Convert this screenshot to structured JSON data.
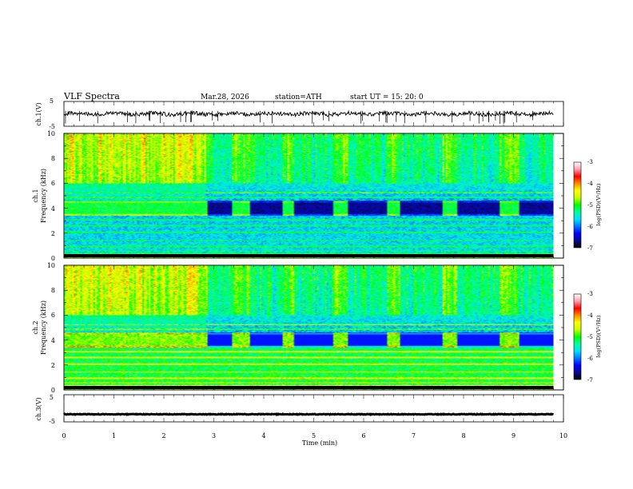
{
  "header": {
    "title": "VLF  Spectra",
    "date": "Mar.28, 2026",
    "station": "station=ATH",
    "start": "start  UT  =    15: 20: 0"
  },
  "colors": {
    "spec_stops": [
      "#000000",
      "#0a0a8c",
      "#0000ff",
      "#0077ff",
      "#00e0ff",
      "#00ff99",
      "#00ff00",
      "#c8ff00",
      "#ffff00",
      "#ff8c00",
      "#ff0000",
      "#ff9fb0",
      "#ffffff"
    ],
    "trace": "#000000"
  },
  "chart_data": [
    {
      "type": "line",
      "panel": "ch1-waveform",
      "ylabel": "ch.1(V)",
      "ylim": [
        -5,
        5
      ],
      "yticks": [
        "5",
        "-5"
      ],
      "xlim": [
        0,
        10
      ],
      "mean_value": 0,
      "noise_amplitude": 0.8
    },
    {
      "type": "heatmap",
      "panel": "ch1-spectrogram",
      "ylabel_channel": "ch.1",
      "ylabel": "Frequency  (kHz)",
      "ylim": [
        0,
        10
      ],
      "yticks": [
        "0",
        "2",
        "4",
        "6",
        "8",
        "10"
      ],
      "xlim": [
        0,
        9.8
      ],
      "colorbar": {
        "label": "log(PSD)(V²/Hz)",
        "ticks": [
          "-3",
          "-4",
          "-5",
          "-6",
          "-7"
        ],
        "range": [
          -7,
          -3
        ]
      },
      "band_4khz_segments_min": [
        [
          2.88,
          3.35
        ],
        [
          3.72,
          4.38
        ],
        [
          4.62,
          5.38
        ],
        [
          5.68,
          6.48
        ],
        [
          6.72,
          7.58
        ],
        [
          7.88,
          8.75
        ],
        [
          9.12,
          9.8
        ]
      ]
    },
    {
      "type": "heatmap",
      "panel": "ch2-spectrogram",
      "ylabel_channel": "ch.2",
      "ylabel": "Frequency  (kHz)",
      "ylim": [
        0,
        10
      ],
      "yticks": [
        "0",
        "2",
        "4",
        "6",
        "8",
        "10"
      ],
      "xlim": [
        0,
        9.8
      ],
      "colorbar": {
        "label": "log(PSD)(V²/Hz)",
        "ticks": [
          "-3",
          "-4",
          "-5",
          "-6",
          "-7"
        ],
        "range": [
          -7,
          -3
        ]
      },
      "band_4khz_segments_min": [
        [
          2.88,
          3.35
        ],
        [
          3.72,
          4.38
        ],
        [
          4.62,
          5.38
        ],
        [
          5.68,
          6.48
        ],
        [
          6.72,
          7.58
        ],
        [
          7.88,
          8.75
        ],
        [
          9.12,
          9.8
        ]
      ]
    },
    {
      "type": "line",
      "panel": "ch3-waveform",
      "ylabel": "ch.3(V)",
      "ylim": [
        -5,
        5
      ],
      "yticks": [
        "5",
        "-5"
      ],
      "xlim": [
        0,
        10
      ],
      "mean_value": -2.2,
      "noise_amplitude": 0.12
    }
  ],
  "xaxis": {
    "label": "Time  (min)",
    "ticks": [
      "0",
      "1",
      "2",
      "3",
      "4",
      "5",
      "6",
      "7",
      "8",
      "9",
      "10"
    ]
  }
}
